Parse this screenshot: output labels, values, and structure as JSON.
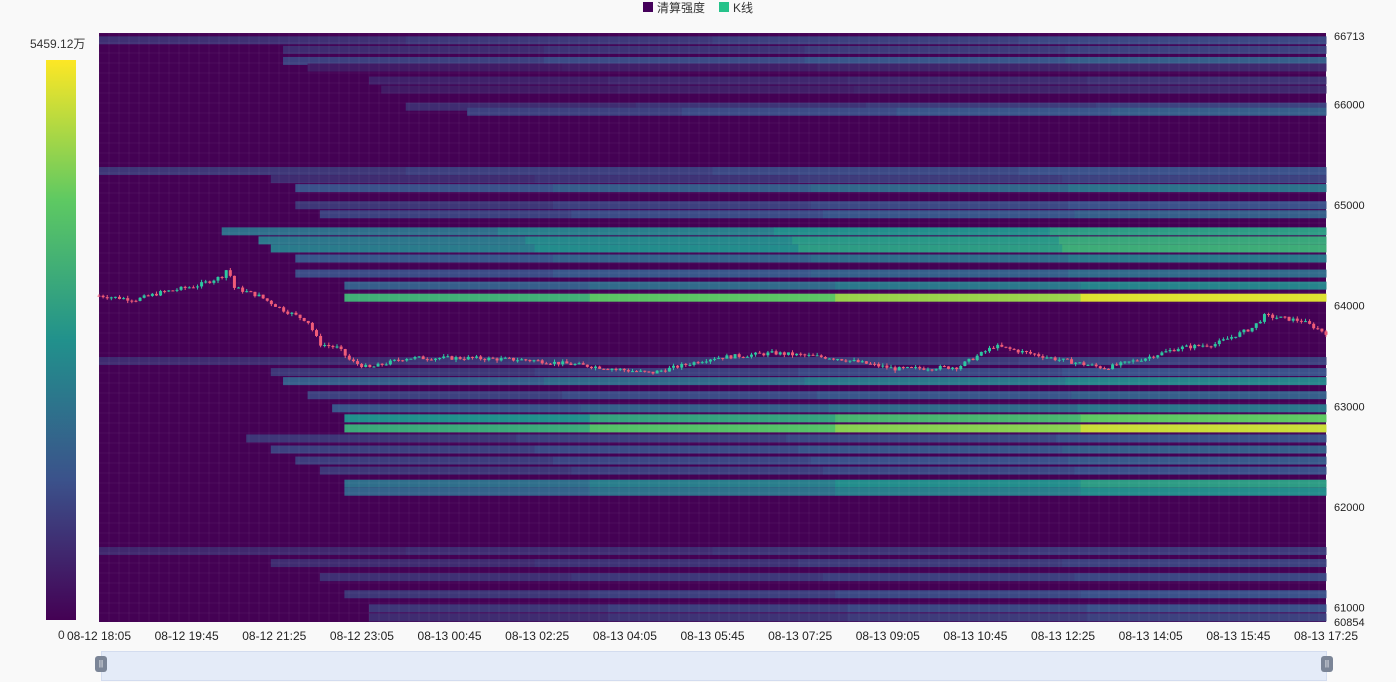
{
  "legend": {
    "items": [
      {
        "label": "清算强度",
        "color": "#44005a"
      },
      {
        "label": "K线",
        "color": "#26c28a"
      }
    ]
  },
  "visual_map": {
    "max_label": "5459.12万",
    "min_label": "0",
    "colors": [
      "#440154",
      "#3b528b",
      "#21918c",
      "#5ec962",
      "#fde725"
    ]
  },
  "colors": {
    "up": "#2ec7a0",
    "down": "#ef5c78",
    "heat_base": "#440154"
  },
  "chart_data": {
    "type": "heatmap",
    "title": "",
    "xlabel": "",
    "ylabel": "",
    "x_tick_labels": [
      "08-12 18:05",
      "08-12 19:45",
      "08-12 21:25",
      "08-12 23:05",
      "08-13 00:45",
      "08-13 02:25",
      "08-13 04:05",
      "08-13 05:45",
      "08-13 07:25",
      "08-13 09:05",
      "08-13 10:45",
      "08-13 12:25",
      "08-13 14:05",
      "08-13 15:45",
      "08-13 17:25"
    ],
    "x_range": [
      "08-12 18:05",
      "08-13 18:10"
    ],
    "y_range": [
      60854,
      66713
    ],
    "y_ticks": [
      60854,
      61000,
      62000,
      63000,
      64000,
      65000,
      66000,
      66713
    ],
    "y_axis_position": "right",
    "legend_placement": "top-center",
    "visualmap_range": [
      0,
      54591200
    ],
    "heat_bands": [
      {
        "price": 66640,
        "start": 0.0,
        "end": 1.0,
        "level": 0.22
      },
      {
        "price": 66545,
        "start": 0.15,
        "end": 1.0,
        "level": 0.2
      },
      {
        "price": 66435,
        "start": 0.15,
        "end": 1.0,
        "level": 0.3
      },
      {
        "price": 66370,
        "start": 0.17,
        "end": 1.0,
        "level": 0.12
      },
      {
        "price": 66240,
        "start": 0.22,
        "end": 1.0,
        "level": 0.15
      },
      {
        "price": 66150,
        "start": 0.23,
        "end": 1.0,
        "level": 0.12
      },
      {
        "price": 65980,
        "start": 0.25,
        "end": 1.0,
        "level": 0.2
      },
      {
        "price": 65930,
        "start": 0.3,
        "end": 1.0,
        "level": 0.3
      },
      {
        "price": 65340,
        "start": 0.0,
        "end": 1.0,
        "level": 0.25
      },
      {
        "price": 65260,
        "start": 0.14,
        "end": 1.0,
        "level": 0.2
      },
      {
        "price": 65170,
        "start": 0.16,
        "end": 1.0,
        "level": 0.38
      },
      {
        "price": 65000,
        "start": 0.16,
        "end": 1.0,
        "level": 0.25
      },
      {
        "price": 64910,
        "start": 0.18,
        "end": 1.0,
        "level": 0.3
      },
      {
        "price": 64740,
        "start": 0.1,
        "end": 1.0,
        "level": 0.55
      },
      {
        "price": 64650,
        "start": 0.13,
        "end": 1.0,
        "level": 0.6
      },
      {
        "price": 64570,
        "start": 0.14,
        "end": 1.0,
        "level": 0.62
      },
      {
        "price": 64470,
        "start": 0.16,
        "end": 1.0,
        "level": 0.4
      },
      {
        "price": 64320,
        "start": 0.16,
        "end": 1.0,
        "level": 0.35
      },
      {
        "price": 64200,
        "start": 0.2,
        "end": 1.0,
        "level": 0.45
      },
      {
        "price": 64080,
        "start": 0.2,
        "end": 1.0,
        "level": 0.95
      },
      {
        "price": 63450,
        "start": 0.0,
        "end": 1.0,
        "level": 0.2
      },
      {
        "price": 63340,
        "start": 0.14,
        "end": 1.0,
        "level": 0.25
      },
      {
        "price": 63250,
        "start": 0.15,
        "end": 1.0,
        "level": 0.45
      },
      {
        "price": 63110,
        "start": 0.17,
        "end": 1.0,
        "level": 0.3
      },
      {
        "price": 62980,
        "start": 0.19,
        "end": 1.0,
        "level": 0.4
      },
      {
        "price": 62880,
        "start": 0.2,
        "end": 1.0,
        "level": 0.75
      },
      {
        "price": 62780,
        "start": 0.2,
        "end": 1.0,
        "level": 0.92
      },
      {
        "price": 62680,
        "start": 0.12,
        "end": 1.0,
        "level": 0.25
      },
      {
        "price": 62570,
        "start": 0.14,
        "end": 1.0,
        "level": 0.3
      },
      {
        "price": 62460,
        "start": 0.16,
        "end": 1.0,
        "level": 0.28
      },
      {
        "price": 62360,
        "start": 0.18,
        "end": 1.0,
        "level": 0.25
      },
      {
        "price": 62230,
        "start": 0.2,
        "end": 1.0,
        "level": 0.55
      },
      {
        "price": 62150,
        "start": 0.2,
        "end": 1.0,
        "level": 0.48
      },
      {
        "price": 61560,
        "start": 0.0,
        "end": 1.0,
        "level": 0.18
      },
      {
        "price": 61440,
        "start": 0.14,
        "end": 1.0,
        "level": 0.2
      },
      {
        "price": 61300,
        "start": 0.18,
        "end": 1.0,
        "level": 0.22
      },
      {
        "price": 61130,
        "start": 0.2,
        "end": 1.0,
        "level": 0.25
      },
      {
        "price": 60990,
        "start": 0.22,
        "end": 1.0,
        "level": 0.25
      },
      {
        "price": 60900,
        "start": 0.22,
        "end": 1.0,
        "level": 0.2
      }
    ],
    "kline_trend": [
      [
        0.0,
        64100
      ],
      [
        0.03,
        64060
      ],
      [
        0.05,
        64130
      ],
      [
        0.08,
        64200
      ],
      [
        0.1,
        64290
      ],
      [
        0.105,
        64380
      ],
      [
        0.11,
        64180
      ],
      [
        0.13,
        64100
      ],
      [
        0.15,
        63960
      ],
      [
        0.17,
        63850
      ],
      [
        0.18,
        63620
      ],
      [
        0.195,
        63580
      ],
      [
        0.205,
        63450
      ],
      [
        0.22,
        63380
      ],
      [
        0.25,
        63480
      ],
      [
        0.3,
        63480
      ],
      [
        0.35,
        63460
      ],
      [
        0.4,
        63400
      ],
      [
        0.45,
        63330
      ],
      [
        0.5,
        63480
      ],
      [
        0.55,
        63530
      ],
      [
        0.6,
        63480
      ],
      [
        0.65,
        63370
      ],
      [
        0.7,
        63390
      ],
      [
        0.73,
        63600
      ],
      [
        0.78,
        63470
      ],
      [
        0.82,
        63380
      ],
      [
        0.85,
        63470
      ],
      [
        0.88,
        63580
      ],
      [
        0.91,
        63620
      ],
      [
        0.94,
        63780
      ],
      [
        0.95,
        63900
      ],
      [
        0.98,
        63850
      ],
      [
        1.0,
        63730
      ]
    ]
  }
}
